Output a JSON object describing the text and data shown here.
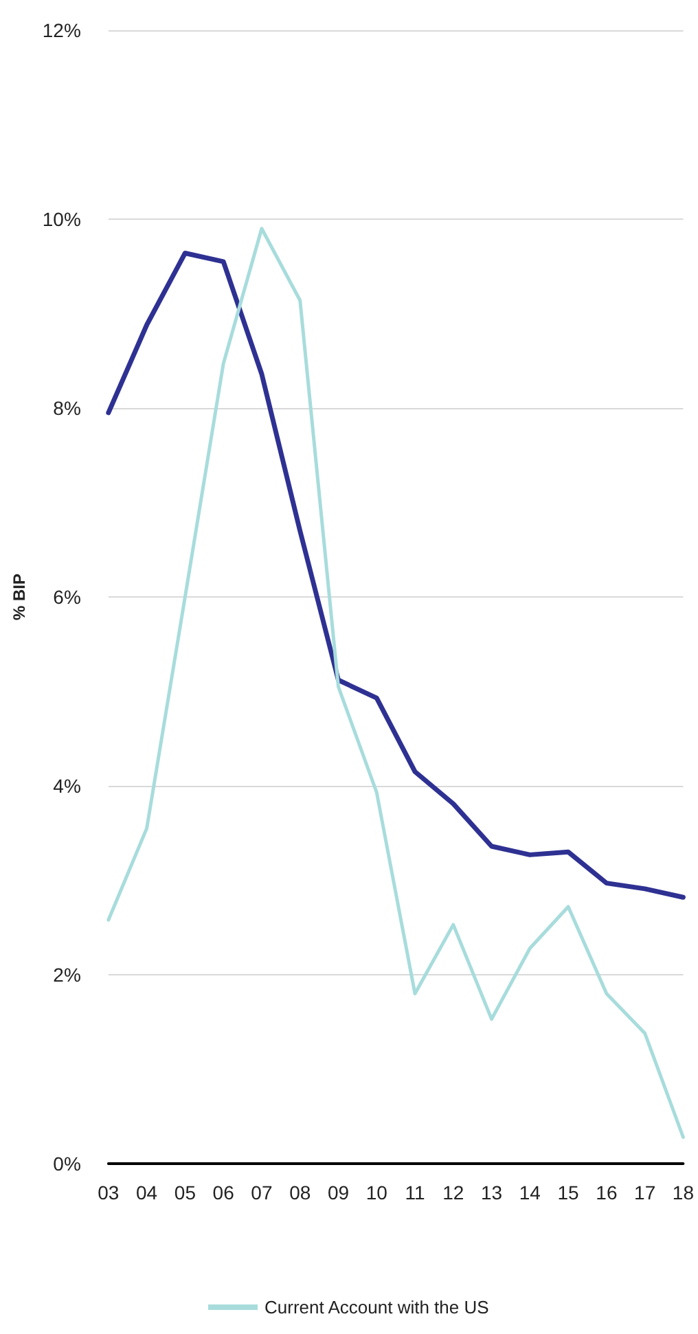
{
  "chart_data": {
    "type": "line",
    "ylabel": "% BIP",
    "categories": [
      "03",
      "04",
      "05",
      "06",
      "07",
      "08",
      "09",
      "10",
      "11",
      "12",
      "13",
      "14",
      "15",
      "16",
      "17",
      "18"
    ],
    "series": [
      {
        "color": "#2e3192",
        "values": [
          7.95,
          8.88,
          9.64,
          9.55,
          8.36,
          6.7,
          5.12,
          4.93,
          4.15,
          3.81,
          3.36,
          3.27,
          3.3,
          2.97,
          2.91,
          2.82
        ]
      },
      {
        "name": "Current Account with the US",
        "color": "#a8dcdc",
        "values": [
          2.58,
          3.55,
          6.0,
          8.47,
          9.9,
          9.14,
          5.05,
          3.93,
          1.8,
          2.53,
          1.53,
          2.28,
          2.72,
          1.8,
          1.38,
          0.28
        ]
      }
    ],
    "ylim": [
      0,
      12
    ],
    "yticks": [
      {
        "value": 0,
        "label": "0%"
      },
      {
        "value": 2,
        "label": "2%"
      },
      {
        "value": 4,
        "label": "4%"
      },
      {
        "value": 6,
        "label": "6%"
      },
      {
        "value": 8,
        "label": "8%"
      },
      {
        "value": 10,
        "label": "10%"
      },
      {
        "value": 12,
        "label": "12%"
      }
    ],
    "grid": "y",
    "legend": "bottom",
    "marker": "none",
    "line_style": "solid"
  }
}
